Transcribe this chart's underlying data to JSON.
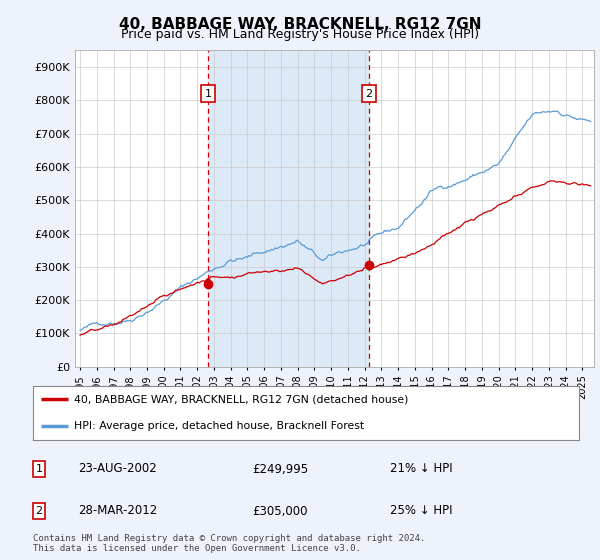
{
  "title": "40, BABBAGE WAY, BRACKNELL, RG12 7GN",
  "subtitle": "Price paid vs. HM Land Registry's House Price Index (HPI)",
  "ylabel_ticks": [
    "£0",
    "£100K",
    "£200K",
    "£300K",
    "£400K",
    "£500K",
    "£600K",
    "£700K",
    "£800K",
    "£900K"
  ],
  "ytick_values": [
    0,
    100000,
    200000,
    300000,
    400000,
    500000,
    600000,
    700000,
    800000,
    900000
  ],
  "ylim": [
    0,
    950000
  ],
  "hpi_color": "#5b9bd5",
  "hpi_fill_color": "#dce9f7",
  "price_color": "#cc0000",
  "marker1_year": 2002.65,
  "marker1_value": 249995,
  "marker2_year": 2012.24,
  "marker2_value": 305000,
  "marker1_label": "1",
  "marker2_label": "2",
  "marker1_date": "23-AUG-2002",
  "marker1_price": "£249,995",
  "marker1_hpi": "21% ↓ HPI",
  "marker2_date": "28-MAR-2012",
  "marker2_price": "£305,000",
  "marker2_hpi": "25% ↓ HPI",
  "legend_line1": "40, BABBAGE WAY, BRACKNELL, RG12 7GN (detached house)",
  "legend_line2": "HPI: Average price, detached house, Bracknell Forest",
  "footnote": "Contains HM Land Registry data © Crown copyright and database right 2024.\nThis data is licensed under the Open Government Licence v3.0.",
  "bg_color": "#eef2fb",
  "plot_bg": "#ffffff",
  "grid_color": "#cccccc",
  "xlim_left": 1994.7,
  "xlim_right": 2025.7
}
